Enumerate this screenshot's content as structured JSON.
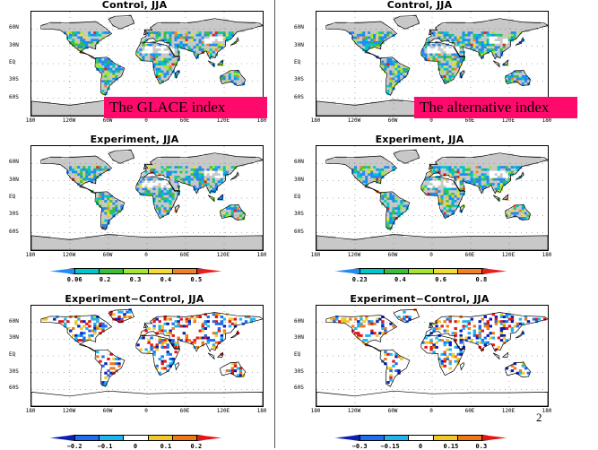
{
  "panels": [
    {
      "title": "Control, JJA",
      "type": "mean",
      "palette": "glace",
      "overlay": "The GLACE index"
    },
    {
      "title": "Control, JJA",
      "type": "mean",
      "palette": "alt",
      "overlay": "The alternative index"
    },
    {
      "title": "Experiment, JJA",
      "type": "mean",
      "palette": "glace"
    },
    {
      "title": "Experiment, JJA",
      "type": "mean",
      "palette": "alt"
    },
    {
      "title": "Experiment−Control, JJA",
      "type": "diff",
      "palette": "glacediff"
    },
    {
      "title": "Experiment−Control, JJA",
      "type": "diff",
      "palette": "altdiff"
    }
  ],
  "lat_ticks": [
    "60N",
    "30N",
    "EQ",
    "30S",
    "60S"
  ],
  "lon_ticks": [
    "180",
    "120W",
    "60W",
    "0",
    "60E",
    "120E",
    "180"
  ],
  "colorbars": {
    "glace": {
      "labels": [
        "0.06",
        "0.2",
        "0.3",
        "0.4",
        "0.5"
      ]
    },
    "alt": {
      "labels": [
        "0.23",
        "0.4",
        "0.6",
        "0.8"
      ]
    },
    "glacediff": {
      "labels": [
        "−0.2",
        "−0.1",
        "0",
        "0.1",
        "0.2"
      ]
    },
    "altdiff": {
      "labels": [
        "−0.3",
        "−0.15",
        "0",
        "0.15",
        "0.3"
      ]
    }
  },
  "colors": {
    "land_gray": "#c8c8c8",
    "palette_mean": [
      "#ffffff",
      "#1e8cf0",
      "#00c8c8",
      "#3cbe3c",
      "#a0e632",
      "#f0dc32",
      "#f08228",
      "#e61e1e"
    ],
    "palette_diff": [
      "#0a1eb4",
      "#1e6ef0",
      "#1eb4f0",
      "#ffffff",
      "#f0c828",
      "#f07814",
      "#e61414"
    ],
    "overlay_bg": "#ff0a6c"
  },
  "page_number": "2"
}
